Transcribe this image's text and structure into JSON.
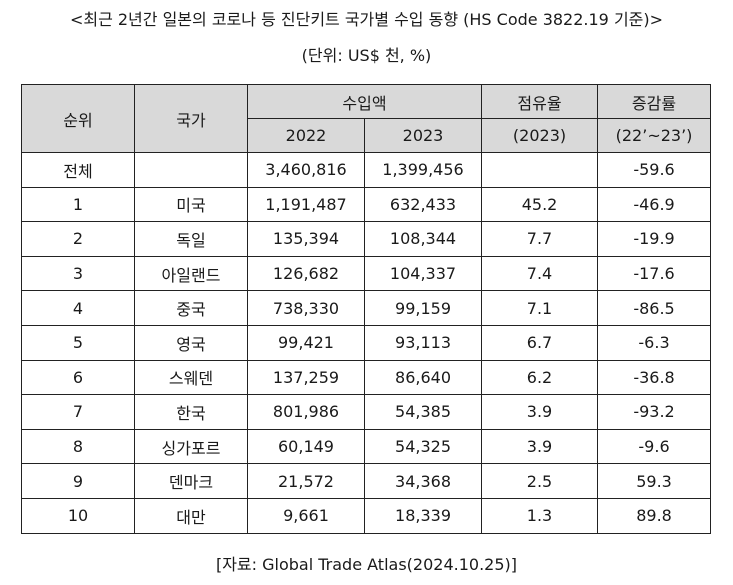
{
  "title": "<최근 2년간 일본의 코로나 등 진단키트 국가별 수입 동향 (HS Code 3822.19 기준)>",
  "unit": "(단위: US$ 천, %)",
  "headers": {
    "rank": "순위",
    "country": "국가",
    "import_amount": "수입액",
    "year_2022": "2022",
    "year_2023": "2023",
    "share": "점유율",
    "share_sub": "(2023)",
    "change": "증감률",
    "change_sub": "(22’~23’)"
  },
  "total": {
    "rank": "전체",
    "country": "",
    "v2022": "3,460,816",
    "v2023": "1,399,456",
    "share": "",
    "change": "-59.6"
  },
  "rows": [
    {
      "rank": "1",
      "country": "미국",
      "v2022": "1,191,487",
      "v2023": "632,433",
      "share": "45.2",
      "change": "-46.9"
    },
    {
      "rank": "2",
      "country": "독일",
      "v2022": "135,394",
      "v2023": "108,344",
      "share": "7.7",
      "change": "-19.9"
    },
    {
      "rank": "3",
      "country": "아일랜드",
      "v2022": "126,682",
      "v2023": "104,337",
      "share": "7.4",
      "change": "-17.6"
    },
    {
      "rank": "4",
      "country": "중국",
      "v2022": "738,330",
      "v2023": "99,159",
      "share": "7.1",
      "change": "-86.5"
    },
    {
      "rank": "5",
      "country": "영국",
      "v2022": "99,421",
      "v2023": "93,113",
      "share": "6.7",
      "change": "-6.3"
    },
    {
      "rank": "6",
      "country": "스웨덴",
      "v2022": "137,259",
      "v2023": "86,640",
      "share": "6.2",
      "change": "-36.8"
    },
    {
      "rank": "7",
      "country": "한국",
      "v2022": "801,986",
      "v2023": "54,385",
      "share": "3.9",
      "change": "-93.2"
    },
    {
      "rank": "8",
      "country": "싱가포르",
      "v2022": "60,149",
      "v2023": "54,325",
      "share": "3.9",
      "change": "-9.6"
    },
    {
      "rank": "9",
      "country": "덴마크",
      "v2022": "21,572",
      "v2023": "34,368",
      "share": "2.5",
      "change": "59.3"
    },
    {
      "rank": "10",
      "country": "대만",
      "v2022": "9,661",
      "v2023": "18,339",
      "share": "1.3",
      "change": "89.8"
    }
  ],
  "source": "[자료: Global Trade Atlas(2024.10.25)]"
}
